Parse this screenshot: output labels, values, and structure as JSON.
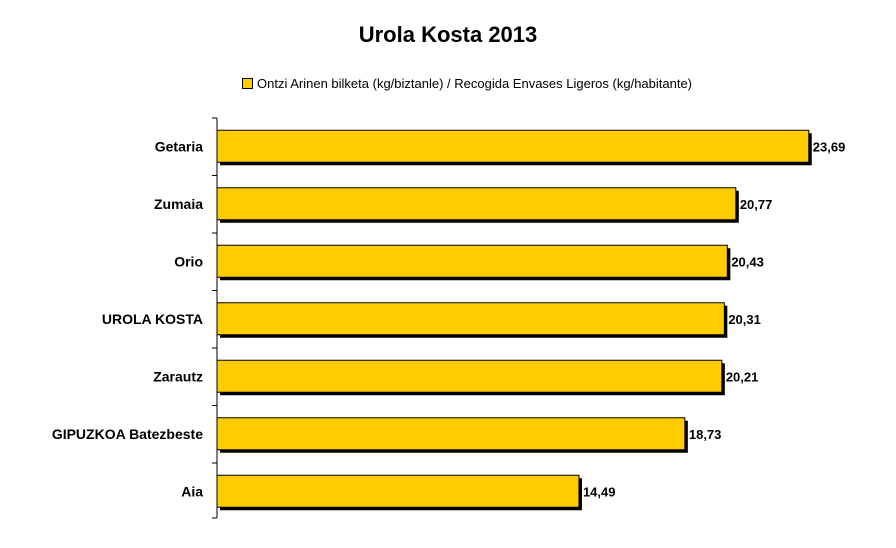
{
  "chart_data": {
    "type": "bar",
    "orientation": "horizontal",
    "title": "Urola Kosta 2013",
    "categories": [
      "Getaria",
      "Zumaia",
      "Orio",
      "UROLA KOSTA",
      "Zarautz",
      "GIPUZKOA Batezbeste",
      "Aia"
    ],
    "series": [
      {
        "name": "Ontzi Arinen bilketa (kg/biztanle) / Recogida Envases Ligeros (kg/habitante)",
        "values": [
          23.69,
          20.77,
          20.43,
          20.31,
          20.21,
          18.73,
          14.49
        ],
        "value_labels": [
          "23,69",
          "20,77",
          "20,43",
          "20,31",
          "20,21",
          "18,73",
          "14,49"
        ]
      }
    ],
    "xlim": [
      0,
      24.5
    ],
    "grid": false,
    "legend_position": "top",
    "colors": {
      "bar": "#FFCC00",
      "bar_edge": "#000000",
      "shadow": "#000000",
      "axis": "#000000"
    }
  }
}
